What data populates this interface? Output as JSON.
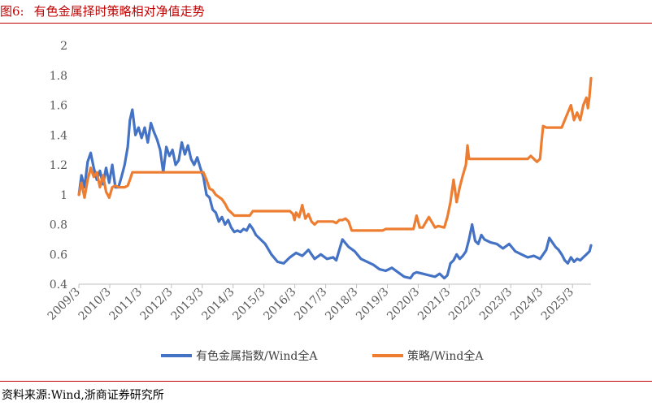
{
  "figure": {
    "number": "图6:",
    "title": "有色金属择时策略相对净值走势",
    "source": "资料来源:Wind,浙商证券研究所"
  },
  "chart_data": {
    "type": "line",
    "title": "",
    "xlabel": "",
    "ylabel": "",
    "ylim": [
      0.4,
      2.0
    ],
    "yticks": [
      "2",
      "1.8",
      "1.6",
      "1.4",
      "1.2",
      "1",
      "0.8",
      "0.6",
      "0.4"
    ],
    "xlim": [
      2009.167,
      2025.75
    ],
    "xticks": [
      "2009/3",
      "2010/3",
      "2011/3",
      "2012/3",
      "2013/3",
      "2014/3",
      "2015/3",
      "2016/3",
      "2017/3",
      "2018/3",
      "2019/3",
      "2020/3",
      "2021/3",
      "2022/3",
      "2023/3",
      "2024/3",
      "2025/3"
    ],
    "grid": false,
    "legend_position": "bottom",
    "series": [
      {
        "name": "有色金属指数/Wind全A",
        "color": "#4472c4",
        "x": [
          2009.17,
          2009.25,
          2009.35,
          2009.45,
          2009.55,
          2009.65,
          2009.75,
          2009.85,
          2009.95,
          2010.05,
          2010.15,
          2010.25,
          2010.35,
          2010.45,
          2010.55,
          2010.65,
          2010.75,
          2010.82,
          2010.9,
          2011.0,
          2011.1,
          2011.2,
          2011.3,
          2011.4,
          2011.5,
          2011.6,
          2011.7,
          2011.8,
          2011.9,
          2012.0,
          2012.1,
          2012.2,
          2012.3,
          2012.4,
          2012.5,
          2012.6,
          2012.7,
          2012.8,
          2012.9,
          2013.0,
          2013.1,
          2013.2,
          2013.3,
          2013.4,
          2013.5,
          2013.6,
          2013.7,
          2013.8,
          2013.9,
          2014.0,
          2014.1,
          2014.2,
          2014.3,
          2014.4,
          2014.5,
          2014.6,
          2014.7,
          2014.8,
          2014.9,
          2015.0,
          2015.2,
          2015.4,
          2015.6,
          2015.8,
          2016.0,
          2016.2,
          2016.4,
          2016.6,
          2016.8,
          2017.0,
          2017.2,
          2017.4,
          2017.5,
          2017.6,
          2017.7,
          2017.9,
          2018.1,
          2018.3,
          2018.5,
          2018.7,
          2018.9,
          2019.1,
          2019.3,
          2019.5,
          2019.7,
          2019.9,
          2020.0,
          2020.1,
          2020.3,
          2020.5,
          2020.7,
          2020.85,
          2021.0,
          2021.1,
          2021.2,
          2021.3,
          2021.4,
          2021.5,
          2021.6,
          2021.7,
          2021.8,
          2021.9,
          2022.0,
          2022.1,
          2022.2,
          2022.3,
          2022.5,
          2022.7,
          2022.9,
          2023.1,
          2023.3,
          2023.5,
          2023.7,
          2023.9,
          2024.1,
          2024.2,
          2024.3,
          2024.4,
          2024.5,
          2024.6,
          2024.7,
          2024.8,
          2024.9,
          2025.0,
          2025.1,
          2025.2,
          2025.3,
          2025.4,
          2025.5,
          2025.6,
          2025.7,
          2025.75
        ],
        "y": [
          1.0,
          1.13,
          1.05,
          1.22,
          1.28,
          1.18,
          1.1,
          1.16,
          1.07,
          1.18,
          1.08,
          1.2,
          1.05,
          1.05,
          1.12,
          1.2,
          1.32,
          1.5,
          1.57,
          1.4,
          1.45,
          1.38,
          1.45,
          1.35,
          1.48,
          1.42,
          1.37,
          1.3,
          1.15,
          1.32,
          1.26,
          1.3,
          1.2,
          1.23,
          1.35,
          1.27,
          1.33,
          1.24,
          1.2,
          1.25,
          1.18,
          1.12,
          1.0,
          0.98,
          0.9,
          0.88,
          0.82,
          0.85,
          0.8,
          0.83,
          0.78,
          0.75,
          0.76,
          0.75,
          0.77,
          0.76,
          0.8,
          0.77,
          0.73,
          0.71,
          0.67,
          0.6,
          0.55,
          0.54,
          0.58,
          0.61,
          0.59,
          0.63,
          0.57,
          0.6,
          0.57,
          0.58,
          0.56,
          0.63,
          0.7,
          0.65,
          0.62,
          0.57,
          0.55,
          0.53,
          0.5,
          0.49,
          0.51,
          0.48,
          0.45,
          0.44,
          0.47,
          0.48,
          0.47,
          0.46,
          0.45,
          0.47,
          0.44,
          0.46,
          0.54,
          0.56,
          0.6,
          0.57,
          0.59,
          0.62,
          0.7,
          0.8,
          0.69,
          0.67,
          0.73,
          0.7,
          0.68,
          0.67,
          0.64,
          0.67,
          0.62,
          0.6,
          0.58,
          0.59,
          0.57,
          0.6,
          0.63,
          0.71,
          0.68,
          0.65,
          0.63,
          0.6,
          0.56,
          0.54,
          0.58,
          0.55,
          0.57,
          0.56,
          0.58,
          0.6,
          0.62,
          0.66
        ]
      },
      {
        "name": "策略/Wind全A",
        "color": "#ed7d31",
        "x": [
          2009.17,
          2009.25,
          2009.35,
          2009.45,
          2009.55,
          2009.65,
          2009.75,
          2009.85,
          2009.95,
          2010.05,
          2010.15,
          2010.25,
          2010.35,
          2010.45,
          2010.55,
          2010.65,
          2010.75,
          2010.82,
          2010.9,
          2011.0,
          2011.1,
          2011.5,
          2012.0,
          2012.5,
          2013.0,
          2013.2,
          2013.3,
          2013.4,
          2013.5,
          2013.6,
          2013.8,
          2013.9,
          2014.0,
          2014.1,
          2014.2,
          2014.3,
          2014.5,
          2014.7,
          2014.8,
          2015.0,
          2015.5,
          2016.0,
          2016.1,
          2016.15,
          2016.2,
          2016.3,
          2016.4,
          2016.5,
          2016.6,
          2016.7,
          2016.8,
          2016.9,
          2017.0,
          2017.2,
          2017.4,
          2017.5,
          2017.6,
          2017.7,
          2017.8,
          2017.9,
          2018.0,
          2018.5,
          2019.0,
          2019.1,
          2019.5,
          2019.8,
          2020.0,
          2020.1,
          2020.2,
          2020.3,
          2020.5,
          2020.7,
          2020.8,
          2021.0,
          2021.1,
          2021.2,
          2021.3,
          2021.4,
          2021.5,
          2021.6,
          2021.7,
          2021.75,
          2021.8,
          2022.0,
          2022.5,
          2023.0,
          2023.5,
          2023.6,
          2023.7,
          2023.8,
          2023.9,
          2024.0,
          2024.1,
          2024.15,
          2024.2,
          2024.3,
          2024.5,
          2024.8,
          2024.9,
          2025.0,
          2025.1,
          2025.2,
          2025.3,
          2025.4,
          2025.5,
          2025.6,
          2025.65,
          2025.7,
          2025.75
        ],
        "y": [
          1.0,
          1.08,
          0.98,
          1.1,
          1.18,
          1.12,
          1.15,
          1.05,
          1.13,
          1.02,
          0.98,
          1.05,
          1.06,
          1.05,
          1.05,
          1.05,
          1.06,
          1.1,
          1.15,
          1.15,
          1.15,
          1.15,
          1.15,
          1.15,
          1.15,
          1.15,
          1.1,
          1.04,
          1.03,
          1.0,
          0.97,
          0.94,
          0.9,
          0.88,
          0.86,
          0.86,
          0.86,
          0.86,
          0.89,
          0.89,
          0.89,
          0.89,
          0.87,
          0.83,
          0.88,
          0.85,
          0.93,
          0.84,
          0.87,
          0.82,
          0.8,
          0.82,
          0.82,
          0.82,
          0.82,
          0.81,
          0.83,
          0.83,
          0.84,
          0.82,
          0.76,
          0.76,
          0.76,
          0.77,
          0.77,
          0.77,
          0.77,
          0.86,
          0.78,
          0.78,
          0.85,
          0.78,
          0.79,
          0.78,
          0.85,
          0.95,
          1.1,
          0.95,
          1.05,
          1.13,
          1.2,
          1.33,
          1.24,
          1.24,
          1.24,
          1.24,
          1.24,
          1.24,
          1.24,
          1.26,
          1.24,
          1.22,
          1.24,
          1.36,
          1.46,
          1.45,
          1.45,
          1.45,
          1.5,
          1.55,
          1.6,
          1.5,
          1.55,
          1.5,
          1.6,
          1.65,
          1.58,
          1.66,
          1.78
        ]
      }
    ]
  }
}
